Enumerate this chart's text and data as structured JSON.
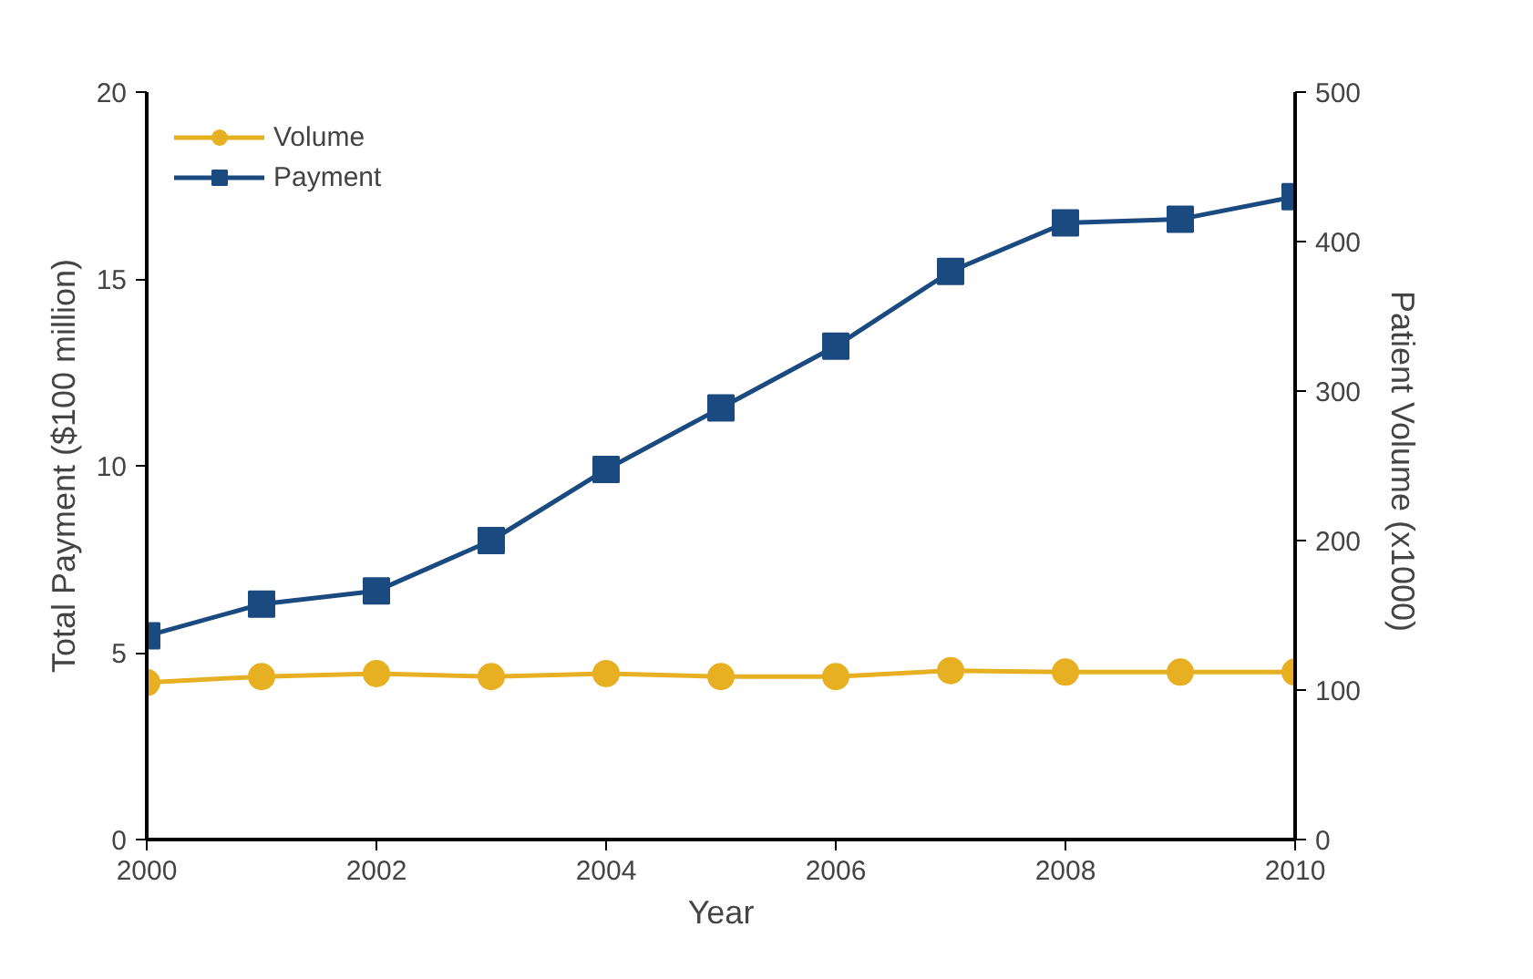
{
  "chart_data": {
    "type": "line",
    "xlabel": "Year",
    "ylabel": "Total Payment ($100 million)",
    "y2label": "Patient Volume  (x1000)",
    "x": [
      2000,
      2001,
      2002,
      2003,
      2004,
      2005,
      2006,
      2007,
      2008,
      2009,
      2010
    ],
    "xlim": [
      2000,
      2010
    ],
    "xticks": [
      2000,
      2002,
      2004,
      2006,
      2008,
      2010
    ],
    "ylim": [
      0,
      20
    ],
    "yticks": [
      0,
      5,
      10,
      15,
      20
    ],
    "y2lim": [
      0,
      500
    ],
    "y2ticks": [
      0,
      100,
      200,
      300,
      400,
      500
    ],
    "grid": false,
    "legend": "top left",
    "series": [
      {
        "name": "Volume",
        "color": "#e6b022",
        "axis": "y2",
        "marker": "circle",
        "values": [
          105,
          109,
          111,
          109,
          111,
          109,
          109,
          113,
          112,
          112,
          112
        ]
      },
      {
        "name": "Payment",
        "color": "#1a4a80",
        "marker": "square",
        "values": [
          5.45,
          6.3,
          6.65,
          8.0,
          9.9,
          11.55,
          13.2,
          15.2,
          16.5,
          16.6,
          17.2
        ]
      }
    ]
  }
}
